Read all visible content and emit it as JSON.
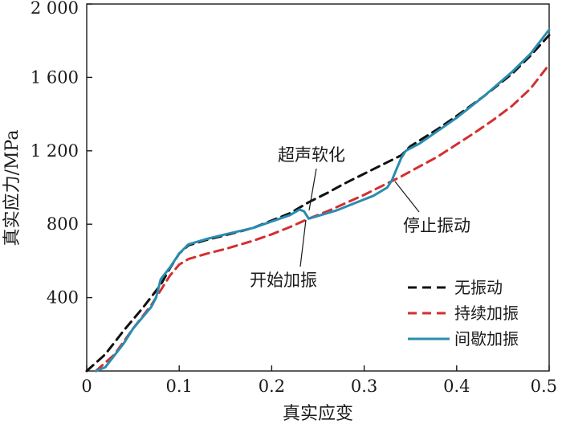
{
  "chart_data": {
    "type": "line",
    "title": "",
    "xlabel": "真实应变",
    "ylabel": "真实应力/MPa",
    "xlim": [
      0,
      0.5
    ],
    "ylim": [
      0,
      2000
    ],
    "x_ticks": [
      0,
      0.1,
      0.2,
      0.3,
      0.4,
      0.5
    ],
    "x_tick_labels": [
      "0",
      "0.1",
      "0.2",
      "0.3",
      "0.4",
      "0.5"
    ],
    "y_ticks": [
      400,
      800,
      1200,
      1600,
      2000
    ],
    "y_tick_labels": [
      "400",
      "800",
      "1 200",
      "1 600",
      "2 000"
    ],
    "grid": false,
    "legend_position": "bottom-right",
    "colors": {
      "无振动": "#111111",
      "持续加振": "#d2302f",
      "间歇加振": "#2a8cb0"
    },
    "series": [
      {
        "name": "无振动",
        "style": "dashed",
        "points": [
          [
            0.0,
            0
          ],
          [
            0.02,
            90
          ],
          [
            0.04,
            220
          ],
          [
            0.06,
            340
          ],
          [
            0.08,
            470
          ],
          [
            0.09,
            560
          ],
          [
            0.1,
            640
          ],
          [
            0.11,
            685
          ],
          [
            0.13,
            715
          ],
          [
            0.15,
            740
          ],
          [
            0.18,
            780
          ],
          [
            0.2,
            820
          ],
          [
            0.22,
            860
          ],
          [
            0.24,
            920
          ],
          [
            0.26,
            970
          ],
          [
            0.28,
            1025
          ],
          [
            0.3,
            1075
          ],
          [
            0.32,
            1125
          ],
          [
            0.34,
            1175
          ],
          [
            0.35,
            1225
          ],
          [
            0.38,
            1320
          ],
          [
            0.4,
            1390
          ],
          [
            0.43,
            1500
          ],
          [
            0.46,
            1620
          ],
          [
            0.48,
            1720
          ],
          [
            0.5,
            1830
          ]
        ]
      },
      {
        "name": "持续加振",
        "style": "dashed",
        "points": [
          [
            0.01,
            0
          ],
          [
            0.03,
            90
          ],
          [
            0.05,
            230
          ],
          [
            0.07,
            360
          ],
          [
            0.09,
            520
          ],
          [
            0.1,
            580
          ],
          [
            0.11,
            610
          ],
          [
            0.13,
            640
          ],
          [
            0.15,
            665
          ],
          [
            0.18,
            710
          ],
          [
            0.2,
            745
          ],
          [
            0.22,
            785
          ],
          [
            0.24,
            830
          ],
          [
            0.26,
            870
          ],
          [
            0.28,
            915
          ],
          [
            0.3,
            960
          ],
          [
            0.32,
            1010
          ],
          [
            0.34,
            1060
          ],
          [
            0.36,
            1115
          ],
          [
            0.38,
            1170
          ],
          [
            0.4,
            1235
          ],
          [
            0.42,
            1300
          ],
          [
            0.44,
            1370
          ],
          [
            0.46,
            1445
          ],
          [
            0.48,
            1540
          ],
          [
            0.5,
            1670
          ]
        ]
      },
      {
        "name": "间歇加振",
        "style": "solid",
        "points": [
          [
            0.01,
            0
          ],
          [
            0.02,
            20
          ],
          [
            0.04,
            150
          ],
          [
            0.05,
            230
          ],
          [
            0.06,
            290
          ],
          [
            0.07,
            350
          ],
          [
            0.075,
            400
          ],
          [
            0.08,
            500
          ],
          [
            0.09,
            565
          ],
          [
            0.1,
            640
          ],
          [
            0.11,
            690
          ],
          [
            0.13,
            720
          ],
          [
            0.15,
            745
          ],
          [
            0.18,
            780
          ],
          [
            0.2,
            815
          ],
          [
            0.22,
            850
          ],
          [
            0.23,
            880
          ],
          [
            0.235,
            870
          ],
          [
            0.24,
            830
          ],
          [
            0.25,
            845
          ],
          [
            0.27,
            875
          ],
          [
            0.29,
            915
          ],
          [
            0.31,
            955
          ],
          [
            0.325,
            1000
          ],
          [
            0.33,
            1040
          ],
          [
            0.335,
            1100
          ],
          [
            0.34,
            1160
          ],
          [
            0.345,
            1200
          ],
          [
            0.36,
            1240
          ],
          [
            0.38,
            1310
          ],
          [
            0.4,
            1380
          ],
          [
            0.43,
            1500
          ],
          [
            0.46,
            1630
          ],
          [
            0.48,
            1730
          ],
          [
            0.5,
            1860
          ]
        ]
      }
    ],
    "annotations": [
      {
        "text": "超声软化",
        "target": [
          0.245,
          880
        ]
      },
      {
        "text": "开始加振",
        "target": [
          0.24,
          830
        ]
      },
      {
        "text": "停止振动",
        "target": [
          0.33,
          1040
        ]
      }
    ]
  }
}
